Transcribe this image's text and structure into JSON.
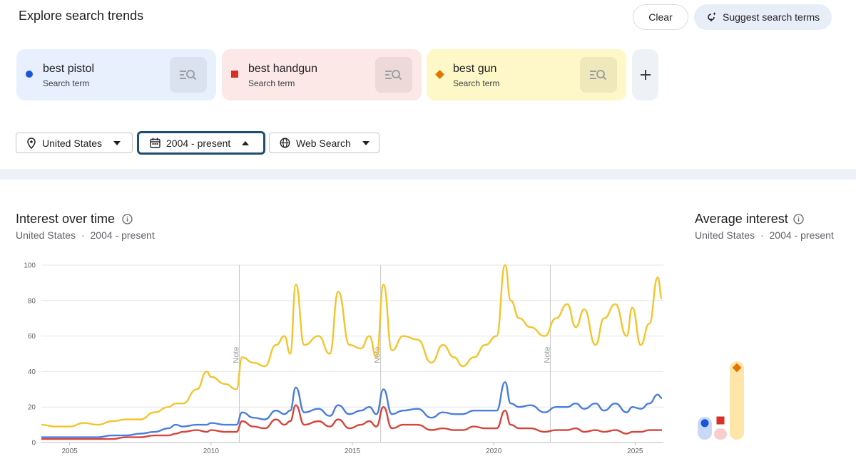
{
  "header": {
    "title": "Explore search trends",
    "clear_label": "Clear",
    "suggest_label": "Suggest search terms"
  },
  "terms": [
    {
      "name": "best pistol",
      "subtitle": "Search term",
      "color": "#1a56db",
      "marker": "circle"
    },
    {
      "name": "best handgun",
      "subtitle": "Search term",
      "color": "#d93025",
      "marker": "square"
    },
    {
      "name": "best gun",
      "subtitle": "Search term",
      "color": "#e37400",
      "marker": "diamond"
    }
  ],
  "filters": {
    "region": "United States",
    "time": "2004 - present",
    "property": "Web Search"
  },
  "interest_over_time": {
    "title": "Interest over time",
    "region": "United States",
    "separator": "·",
    "period": "2004 - present"
  },
  "average_interest": {
    "title": "Average interest",
    "region": "United States",
    "separator": "·",
    "period": "2004 - present",
    "values": [
      {
        "term": "best pistol",
        "value": 12,
        "color": "#1a56db",
        "track": "#c9d9f5"
      },
      {
        "term": "best handgun",
        "value": 6,
        "color": "#d93025",
        "track": "#f8cfcc"
      },
      {
        "term": "best gun",
        "value": 41,
        "color": "#e37400",
        "track": "#fde6a8"
      }
    ]
  },
  "chart_data": {
    "type": "line",
    "x": [
      2004.0,
      2004.5,
      2005.0,
      2005.5,
      2006.0,
      2006.5,
      2007.0,
      2007.5,
      2008.0,
      2008.5,
      2008.75,
      2009.0,
      2009.5,
      2009.85,
      2010.0,
      2010.5,
      2010.9,
      2011.1,
      2011.5,
      2011.9,
      2012.3,
      2012.6,
      2012.8,
      2013.0,
      2013.3,
      2013.8,
      2014.2,
      2014.5,
      2014.9,
      2015.3,
      2015.6,
      2015.85,
      2016.1,
      2016.4,
      2016.8,
      2017.3,
      2017.8,
      2018.2,
      2018.6,
      2018.9,
      2019.3,
      2019.7,
      2020.1,
      2020.4,
      2020.6,
      2020.9,
      2021.3,
      2021.8,
      2022.2,
      2022.6,
      2022.9,
      2023.2,
      2023.6,
      2023.9,
      2024.3,
      2024.7,
      2024.9,
      2025.2,
      2025.5,
      2025.8,
      2025.95
    ],
    "series": [
      {
        "name": "best pistol",
        "color": "#4a7ddc",
        "values": [
          3,
          3,
          3,
          3,
          3,
          4,
          4,
          5,
          6,
          8,
          10,
          9,
          10,
          10,
          11,
          10,
          10,
          17,
          14,
          13,
          18,
          16,
          18,
          31,
          17,
          19,
          15,
          21,
          16,
          18,
          20,
          16,
          30,
          16,
          18,
          19,
          14,
          17,
          16,
          16,
          18,
          18,
          18,
          34,
          22,
          20,
          21,
          17,
          20,
          20,
          22,
          19,
          22,
          18,
          22,
          17,
          20,
          19,
          22,
          27,
          25
        ]
      },
      {
        "name": "best handgun",
        "color": "#d6453b",
        "values": [
          2,
          2,
          2,
          2,
          2,
          2,
          3,
          3,
          4,
          4,
          5,
          6,
          7,
          6,
          7,
          6,
          6,
          12,
          9,
          8,
          13,
          10,
          12,
          21,
          10,
          12,
          9,
          13,
          8,
          10,
          12,
          9,
          20,
          8,
          10,
          10,
          7,
          8,
          7,
          7,
          9,
          8,
          8,
          18,
          10,
          8,
          8,
          6,
          7,
          7,
          8,
          6,
          7,
          6,
          7,
          5,
          6,
          6,
          7,
          7,
          7
        ]
      },
      {
        "name": "best gun",
        "color": "#f4c42c",
        "values": [
          10,
          9,
          9,
          11,
          10,
          12,
          13,
          13,
          17,
          20,
          22,
          22,
          30,
          40,
          37,
          33,
          30,
          48,
          45,
          43,
          55,
          60,
          50,
          89,
          55,
          60,
          50,
          85,
          55,
          53,
          60,
          48,
          89,
          52,
          60,
          58,
          45,
          55,
          48,
          43,
          48,
          55,
          60,
          100,
          80,
          70,
          65,
          60,
          70,
          78,
          65,
          75,
          55,
          70,
          78,
          60,
          76,
          55,
          67,
          93,
          81
        ]
      }
    ],
    "x_ticks": [
      2005,
      2010,
      2015,
      2020,
      2025
    ],
    "y_ticks": [
      0,
      20,
      40,
      60,
      80,
      100
    ],
    "xlim": [
      2004.0,
      2026.0
    ],
    "ylim": [
      0,
      100
    ],
    "notes": [
      {
        "x": 2011.0,
        "label": "Note"
      },
      {
        "x": 2016.0,
        "label": "Note"
      },
      {
        "x": 2022.0,
        "label": "Note"
      }
    ],
    "grid": true
  }
}
